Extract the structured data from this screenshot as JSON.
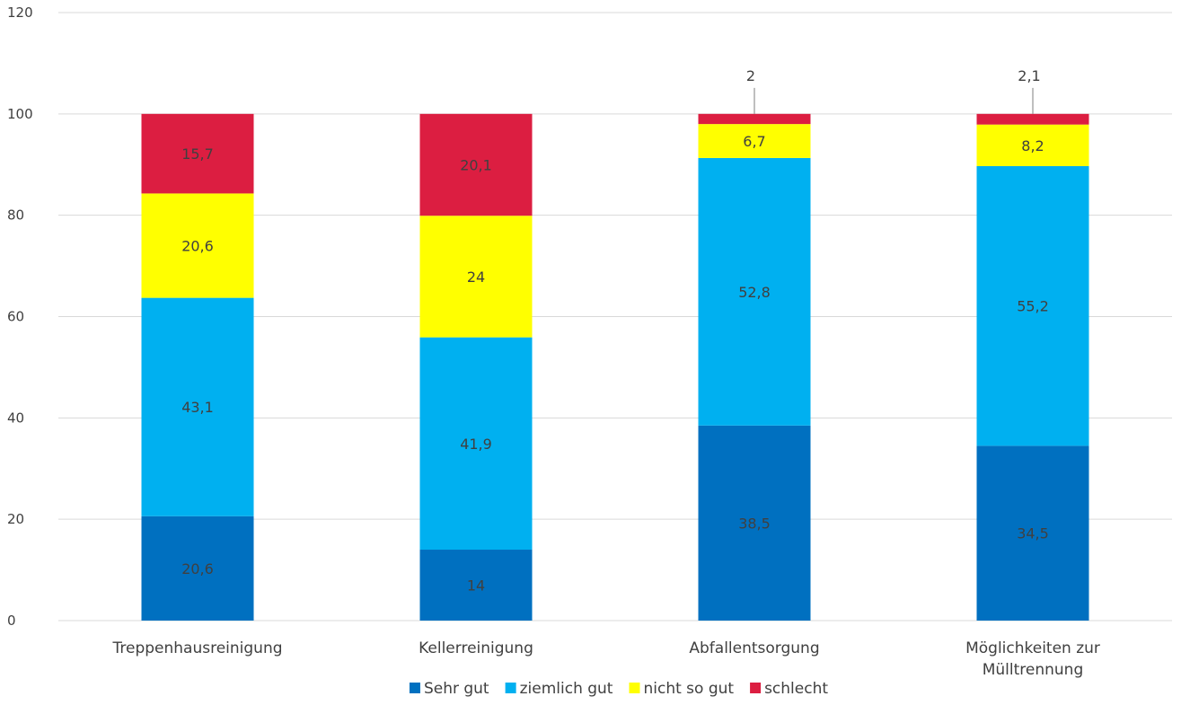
{
  "chart_data": {
    "type": "bar",
    "stacked": true,
    "categories": [
      "Treppenhausreinigung",
      "Kellerreinigung",
      "Abfallentsorgung",
      "Möglichkeiten zur Mülltrennung"
    ],
    "category_lines": [
      [
        "Treppenhausreinigung"
      ],
      [
        "Kellerreinigung"
      ],
      [
        "Abfallentsorgung"
      ],
      [
        "Möglichkeiten zur",
        "Mülltrennung"
      ]
    ],
    "series": [
      {
        "name": "Sehr gut",
        "color": "#0070C0",
        "values": [
          20.6,
          14,
          38.5,
          34.5
        ],
        "labels": [
          "20,6",
          "14",
          "38,5",
          "34,5"
        ]
      },
      {
        "name": "ziemlich gut",
        "color": "#00B0F0",
        "values": [
          43.1,
          41.9,
          52.8,
          55.2
        ],
        "labels": [
          "43,1",
          "41,9",
          "52,8",
          "55,2"
        ]
      },
      {
        "name": "nicht so gut",
        "color": "#FFFF00",
        "values": [
          20.6,
          24,
          6.7,
          8.2
        ],
        "labels": [
          "20,6",
          "24",
          "6,7",
          "8,2"
        ]
      },
      {
        "name": "schlecht",
        "color": "#DC1E41",
        "values": [
          15.7,
          20.1,
          2,
          2.1
        ],
        "labels": [
          "15,7",
          "20,1",
          "2",
          "2,1"
        ]
      }
    ],
    "ylim": [
      0,
      120
    ],
    "yticks": [
      0,
      20,
      40,
      60,
      80,
      100,
      120
    ],
    "title": "",
    "xlabel": "",
    "ylabel": "",
    "grid": true,
    "legend": "bottom"
  }
}
